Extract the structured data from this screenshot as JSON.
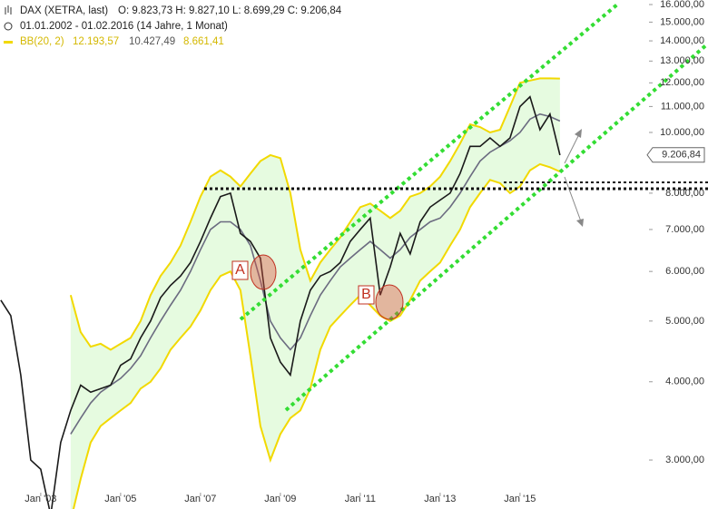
{
  "chart_data": {
    "type": "line",
    "title": "DAX (XETRA, last)",
    "ohlc": "O: 9.823,73  H: 9.827,10  L: 8.699,29  C: 9.206,84",
    "subtitle": "01.01.2002 - 01.02.2016 (14 Jahre, 1 Monat)",
    "bb": "BB(20, 2)",
    "bb_values": [
      "12.193,57",
      "10.427,49",
      "8.661,41"
    ],
    "price_label": "9.206,84",
    "annotations": [
      "A",
      "B"
    ],
    "log_scale": true,
    "x": [
      2002.0,
      2002.25,
      2002.5,
      2002.75,
      2003.0,
      2003.25,
      2003.5,
      2003.75,
      2004.0,
      2004.25,
      2004.5,
      2004.75,
      2005.0,
      2005.25,
      2005.5,
      2005.75,
      2006.0,
      2006.25,
      2006.5,
      2006.75,
      2007.0,
      2007.25,
      2007.5,
      2007.75,
      2008.0,
      2008.25,
      2008.5,
      2008.75,
      2009.0,
      2009.25,
      2009.5,
      2009.75,
      2010.0,
      2010.25,
      2010.5,
      2010.75,
      2011.0,
      2011.25,
      2011.5,
      2011.75,
      2012.0,
      2012.25,
      2012.5,
      2012.75,
      2013.0,
      2013.25,
      2013.5,
      2013.75,
      2014.0,
      2014.25,
      2014.5,
      2014.75,
      2015.0,
      2015.25,
      2015.5,
      2015.75,
      2016.0
    ],
    "series": [
      {
        "color": "#f2d900",
        "band": true,
        "values": [
          null,
          null,
          null,
          null,
          null,
          null,
          null,
          5500,
          4800,
          4550,
          4600,
          4500,
          4600,
          4700,
          5000,
          5500,
          5900,
          6200,
          6600,
          7200,
          7900,
          8500,
          8700,
          8500,
          8200,
          8600,
          9000,
          9200,
          9100,
          8000,
          6500,
          5800,
          6200,
          6500,
          6800,
          7200,
          7600,
          7700,
          7500,
          7300,
          7500,
          7900,
          8000,
          8200,
          8500,
          9000,
          9600,
          10300,
          10200,
          10000,
          10100,
          11000,
          12000,
          12100,
          12200,
          12200,
          12190
        ]
      },
      {
        "color": "#f2d900",
        "band": true,
        "values": [
          null,
          null,
          null,
          null,
          null,
          null,
          null,
          2400,
          2800,
          3200,
          3400,
          3500,
          3600,
          3700,
          3900,
          4000,
          4200,
          4500,
          4700,
          4900,
          5200,
          5600,
          5900,
          6000,
          5600,
          4400,
          3400,
          3000,
          3300,
          3500,
          3600,
          3900,
          4500,
          4900,
          5100,
          5300,
          5500,
          5300,
          5100,
          5000,
          5100,
          5400,
          5800,
          6000,
          6200,
          6600,
          7000,
          7600,
          8000,
          8400,
          8300,
          8000,
          8200,
          8700,
          8900,
          8800,
          8660
        ]
      },
      {
        "color": "#6b6b80",
        "values": [
          null,
          null,
          null,
          null,
          null,
          null,
          null,
          3300,
          3500,
          3700,
          3850,
          3950,
          4050,
          4200,
          4400,
          4700,
          5000,
          5300,
          5600,
          6000,
          6500,
          7000,
          7200,
          7200,
          7000,
          6600,
          5800,
          5000,
          4700,
          4500,
          4700,
          5100,
          5500,
          5800,
          6100,
          6300,
          6500,
          6700,
          6500,
          6300,
          6500,
          6800,
          7000,
          7200,
          7300,
          7600,
          8000,
          8500,
          9000,
          9300,
          9500,
          9700,
          10000,
          10500,
          10700,
          10600,
          10430
        ]
      },
      {
        "color": "#1a1a1a",
        "values": [
          5400,
          5100,
          4100,
          3000,
          2900,
          2450,
          3200,
          3600,
          3950,
          3850,
          3900,
          3950,
          4250,
          4350,
          4700,
          5000,
          5450,
          5700,
          5900,
          6200,
          6700,
          7300,
          7900,
          8000,
          6900,
          6700,
          6300,
          4700,
          4300,
          4100,
          5000,
          5600,
          5900,
          6000,
          6200,
          6700,
          7000,
          7300,
          5500,
          6100,
          6900,
          6400,
          7200,
          7600,
          7800,
          8000,
          8600,
          9500,
          9500,
          9800,
          9500,
          9800,
          11000,
          11400,
          10100,
          10700,
          9200
        ]
      }
    ],
    "xlim": [
      2001.98,
      2018.23
    ],
    "xticks": [
      {
        "value": 2003,
        "label": "Jan '03"
      },
      {
        "value": 2005,
        "label": "Jan '05"
      },
      {
        "value": 2007,
        "label": "Jan '07"
      },
      {
        "value": 2009,
        "label": "Jan '09"
      },
      {
        "value": 2011,
        "label": "Jan '11"
      },
      {
        "value": 2013,
        "label": "Jan '13"
      },
      {
        "value": 2015,
        "label": "Jan '15"
      }
    ],
    "ylim": [
      2506,
      16270
    ],
    "yticks": [
      {
        "value": 3000,
        "label": "3.000,00"
      },
      {
        "value": 4000,
        "label": "4.000,00"
      },
      {
        "value": 5000,
        "label": "5.000,00"
      },
      {
        "value": 6000,
        "label": "6.000,00"
      },
      {
        "value": 7000,
        "label": "7.000,00"
      },
      {
        "value": 8000,
        "label": "8.000,00"
      },
      {
        "value": 10000,
        "label": "10.000,00"
      },
      {
        "value": 11000,
        "label": "11.000,00"
      },
      {
        "value": 12000,
        "label": "12.000,00"
      },
      {
        "value": 13000,
        "label": "13.000,00"
      },
      {
        "value": 14000,
        "label": "14.000,00"
      },
      {
        "value": 15000,
        "label": "15.000,00"
      },
      {
        "value": 16000,
        "label": "16.000,00"
      }
    ],
    "price_value": 9206.84
  }
}
